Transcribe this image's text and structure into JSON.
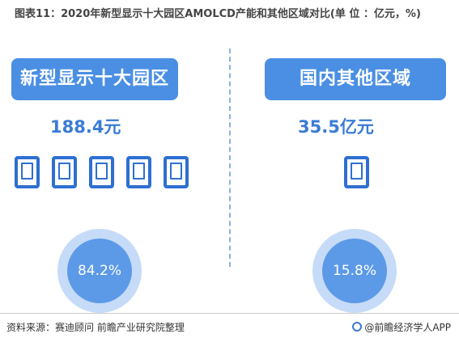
{
  "title": "图表11：2020年新型显示十大园区AMOLCD产能和其他区域对比(单 位 ：亿元，%)",
  "colors": {
    "pill": "#4a8fe3",
    "ring_outer": "#c6dbf7",
    "ring_inner": "#5c9ae8",
    "accent": "#3a7bd5",
    "device": "#2e6fd1"
  },
  "chart_data": {
    "type": "pictograph",
    "title": "图表11：2020年新型显示十大园区AMOLCD产能和其他区域对比(单 位 ：亿元，%)",
    "unit": "亿元，%",
    "categories": [
      "新型显示十大园区",
      "国内其他区域"
    ],
    "capacity_label": [
      "188.4元",
      "35.5亿元"
    ],
    "capacity_values": [
      188.4,
      35.5
    ],
    "share_percent": [
      84.2,
      15.8
    ],
    "share_label": [
      "84.2%",
      "15.8%"
    ],
    "icon_counts": [
      5,
      1
    ]
  },
  "footer": {
    "source": "资料来源：赛迪顾问 前瞻产业研究院整理",
    "brand": "@前瞻经济学人APP"
  }
}
